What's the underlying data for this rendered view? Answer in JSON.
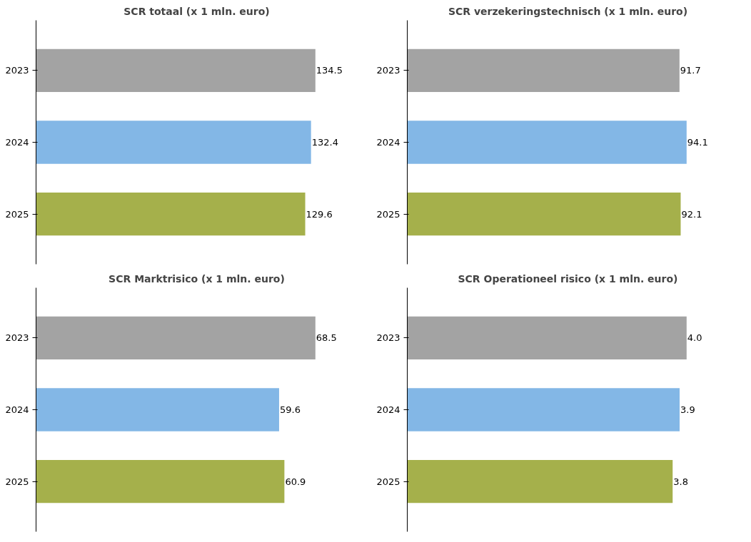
{
  "chart_data": [
    {
      "type": "bar",
      "orientation": "horizontal",
      "title": "SCR totaal (x 1 mln. euro)",
      "categories": [
        "2023",
        "2024",
        "2025"
      ],
      "values": [
        134.5,
        132.4,
        129.6
      ],
      "value_labels": [
        "134.5",
        "132.4",
        "129.6"
      ],
      "colors": [
        "#a3a3a3",
        "#83b7e6",
        "#a5b04b"
      ],
      "tick_labels": "y"
    },
    {
      "type": "bar",
      "orientation": "horizontal",
      "title": "SCR verzekeringstechnisch (x 1 mln. euro)",
      "categories": [
        "2023",
        "2024",
        "2025"
      ],
      "values": [
        91.7,
        94.1,
        92.1
      ],
      "value_labels": [
        "91.7",
        "94.1",
        "92.1"
      ],
      "colors": [
        "#a3a3a3",
        "#83b7e6",
        "#a5b04b"
      ],
      "tick_labels": "y"
    },
    {
      "type": "bar",
      "orientation": "horizontal",
      "title": "SCR Marktrisico (x 1 mln. euro)",
      "categories": [
        "2023",
        "2024",
        "2025"
      ],
      "values": [
        68.5,
        59.6,
        60.9
      ],
      "value_labels": [
        "68.5",
        "59.6",
        "60.9"
      ],
      "colors": [
        "#a3a3a3",
        "#83b7e6",
        "#a5b04b"
      ],
      "tick_labels": "y"
    },
    {
      "type": "bar",
      "orientation": "horizontal",
      "title": "SCR Operationeel risico (x 1 mln. euro)",
      "categories": [
        "2023",
        "2024",
        "2025"
      ],
      "values": [
        4.0,
        3.9,
        3.8
      ],
      "value_labels": [
        "4.0",
        "3.9",
        "3.8"
      ],
      "colors": [
        "#a3a3a3",
        "#83b7e6",
        "#a5b04b"
      ],
      "tick_labels": "y"
    }
  ]
}
